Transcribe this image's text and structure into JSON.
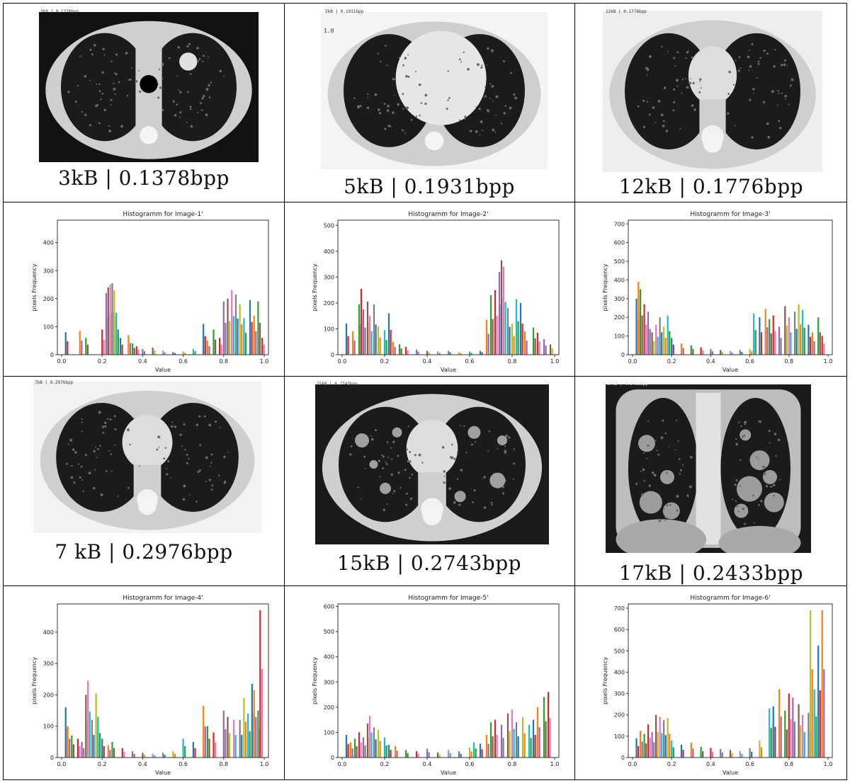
{
  "scans": [
    {
      "id": "scan-1",
      "caption": "3kB | 0.1378bpp",
      "header": "3kB | 0.1378bpp",
      "type": "axial-upper",
      "bg": "#111111"
    },
    {
      "id": "scan-2",
      "caption": "5kB | 0.1931bpp",
      "header": "5kB | 0.1931bpp",
      "type": "axial-heart",
      "bg": "#f4f4f4",
      "extra": "1.0"
    },
    {
      "id": "scan-3",
      "caption": "12kB | 0.1776bpp",
      "header": "12kB | 0.1776bpp",
      "type": "axial-hilum",
      "bg": "#eeeeee"
    },
    {
      "id": "scan-4",
      "caption": "7 kB | 0.2976bpp",
      "header": "7kB | 0.2976bpp",
      "type": "axial-hilum",
      "bg": "#f2f2f2"
    },
    {
      "id": "scan-5",
      "caption": "15kB | 0.2743bpp",
      "header": "15kB | 0.2743bpp",
      "type": "axial-nodules",
      "bg": "#1a1a1a"
    },
    {
      "id": "scan-6",
      "caption": "17kB | 0.2433bpp",
      "header": "17kB | 0.2433bpp",
      "type": "coronal",
      "bg": "#1a1a1a"
    }
  ],
  "chart_data": [
    {
      "type": "bar",
      "title": "Histogramm for Image-1'",
      "xlabel": "Value",
      "ylabel": "pixels Frequency",
      "xlim": [
        0,
        1
      ],
      "ylim": [
        0,
        480
      ],
      "yticks": [
        0,
        100,
        200,
        300,
        400
      ],
      "xticks": [
        0.0,
        0.2,
        0.4,
        0.6,
        0.8,
        1.0
      ],
      "x": [
        0.02,
        0.09,
        0.12,
        0.2,
        0.22,
        0.23,
        0.24,
        0.25,
        0.26,
        0.27,
        0.29,
        0.33,
        0.35,
        0.37,
        0.4,
        0.45,
        0.5,
        0.55,
        0.6,
        0.65,
        0.7,
        0.72,
        0.75,
        0.78,
        0.8,
        0.82,
        0.84,
        0.86,
        0.88,
        0.9,
        0.93,
        0.95,
        0.97,
        0.99
      ],
      "values": [
        80,
        85,
        60,
        90,
        220,
        240,
        250,
        255,
        230,
        150,
        60,
        70,
        40,
        30,
        20,
        25,
        15,
        10,
        12,
        20,
        110,
        50,
        90,
        60,
        190,
        200,
        230,
        215,
        180,
        130,
        195,
        140,
        190,
        60
      ]
    },
    {
      "type": "bar",
      "title": "Histogramm for Image-2'",
      "xlabel": "Value",
      "ylabel": "pixels Frequency",
      "xlim": [
        0,
        1
      ],
      "ylim": [
        0,
        520
      ],
      "yticks": [
        0,
        100,
        200,
        300,
        400,
        500
      ],
      "xticks": [
        0.0,
        0.2,
        0.4,
        0.6,
        0.8,
        1.0
      ],
      "x": [
        0.02,
        0.05,
        0.08,
        0.09,
        0.1,
        0.12,
        0.13,
        0.15,
        0.17,
        0.2,
        0.22,
        0.24,
        0.27,
        0.3,
        0.35,
        0.4,
        0.45,
        0.5,
        0.55,
        0.6,
        0.65,
        0.68,
        0.7,
        0.72,
        0.74,
        0.75,
        0.76,
        0.78,
        0.8,
        0.82,
        0.84,
        0.86,
        0.9,
        0.92,
        0.95,
        0.98
      ],
      "values": [
        120,
        90,
        195,
        255,
        175,
        205,
        150,
        195,
        110,
        95,
        160,
        50,
        40,
        30,
        20,
        15,
        12,
        15,
        10,
        12,
        15,
        135,
        230,
        250,
        320,
        365,
        340,
        180,
        120,
        215,
        200,
        90,
        105,
        85,
        60,
        40
      ]
    },
    {
      "type": "bar",
      "title": "Histogramm for Image-3'",
      "xlabel": "Value",
      "ylabel": "pixels Frequency",
      "xlim": [
        0,
        1
      ],
      "ylim": [
        0,
        720
      ],
      "yticks": [
        0,
        100,
        200,
        300,
        400,
        500,
        600,
        700
      ],
      "xticks": [
        0.0,
        0.2,
        0.4,
        0.6,
        0.8,
        1.0
      ],
      "x": [
        0.02,
        0.03,
        0.04,
        0.06,
        0.08,
        0.1,
        0.12,
        0.14,
        0.16,
        0.18,
        0.2,
        0.25,
        0.3,
        0.35,
        0.4,
        0.45,
        0.5,
        0.55,
        0.6,
        0.62,
        0.65,
        0.68,
        0.7,
        0.72,
        0.75,
        0.78,
        0.8,
        0.83,
        0.85,
        0.87,
        0.9,
        0.92,
        0.95,
        0.97
      ],
      "values": [
        300,
        390,
        350,
        270,
        230,
        120,
        160,
        200,
        150,
        210,
        90,
        60,
        50,
        40,
        30,
        25,
        20,
        25,
        30,
        220,
        200,
        245,
        190,
        210,
        150,
        260,
        200,
        230,
        270,
        240,
        160,
        120,
        200,
        100
      ]
    },
    {
      "type": "bar",
      "title": "Histogramm for Image-4'",
      "xlabel": "Value",
      "ylabel": "pixels Frequency",
      "xlim": [
        0,
        1
      ],
      "ylim": [
        0,
        490
      ],
      "yticks": [
        0,
        100,
        200,
        300,
        400
      ],
      "xticks": [
        0.0,
        0.2,
        0.4,
        0.6,
        0.8,
        1.0
      ],
      "x": [
        0.02,
        0.03,
        0.05,
        0.08,
        0.1,
        0.12,
        0.13,
        0.15,
        0.17,
        0.18,
        0.2,
        0.23,
        0.25,
        0.3,
        0.35,
        0.4,
        0.45,
        0.5,
        0.55,
        0.6,
        0.65,
        0.7,
        0.72,
        0.75,
        0.8,
        0.82,
        0.85,
        0.88,
        0.9,
        0.92,
        0.94,
        0.95,
        0.97,
        0.98
      ],
      "values": [
        160,
        100,
        70,
        60,
        50,
        200,
        245,
        120,
        205,
        130,
        60,
        40,
        50,
        30,
        20,
        15,
        12,
        15,
        20,
        60,
        50,
        165,
        100,
        80,
        150,
        130,
        120,
        120,
        190,
        140,
        235,
        215,
        150,
        470
      ]
    },
    {
      "type": "bar",
      "title": "Histogramm for Image-5'",
      "xlabel": "Value",
      "ylabel": "pixels Frequency",
      "xlim": [
        0,
        1
      ],
      "ylim": [
        0,
        610
      ],
      "yticks": [
        0,
        100,
        200,
        300,
        400,
        500,
        600
      ],
      "xticks": [
        0.0,
        0.2,
        0.4,
        0.6,
        0.8,
        1.0
      ],
      "x": [
        0.02,
        0.04,
        0.06,
        0.08,
        0.1,
        0.12,
        0.13,
        0.15,
        0.17,
        0.2,
        0.22,
        0.25,
        0.3,
        0.35,
        0.4,
        0.45,
        0.5,
        0.55,
        0.6,
        0.62,
        0.65,
        0.68,
        0.7,
        0.72,
        0.75,
        0.78,
        0.8,
        0.82,
        0.85,
        0.88,
        0.9,
        0.92,
        0.95,
        0.97
      ],
      "values": [
        90,
        60,
        75,
        100,
        80,
        135,
        165,
        120,
        110,
        80,
        50,
        45,
        30,
        25,
        35,
        20,
        30,
        25,
        40,
        60,
        55,
        90,
        140,
        150,
        130,
        175,
        190,
        140,
        160,
        130,
        150,
        200,
        240,
        260
      ]
    },
    {
      "type": "bar",
      "title": "Histogramm for Image-6'",
      "xlabel": "Value",
      "ylabel": "pixels Frequency",
      "xlim": [
        0,
        1
      ],
      "ylim": [
        0,
        720
      ],
      "yticks": [
        0,
        100,
        200,
        300,
        400,
        500,
        600,
        700
      ],
      "xticks": [
        0.0,
        0.2,
        0.4,
        0.6,
        0.8,
        1.0
      ],
      "x": [
        0.02,
        0.04,
        0.06,
        0.08,
        0.1,
        0.12,
        0.14,
        0.16,
        0.18,
        0.2,
        0.25,
        0.3,
        0.35,
        0.4,
        0.45,
        0.5,
        0.55,
        0.6,
        0.65,
        0.7,
        0.72,
        0.75,
        0.78,
        0.8,
        0.82,
        0.85,
        0.87,
        0.9,
        0.91,
        0.93,
        0.95,
        0.97
      ],
      "values": [
        90,
        125,
        110,
        155,
        120,
        200,
        190,
        175,
        185,
        80,
        60,
        70,
        50,
        45,
        40,
        35,
        30,
        45,
        80,
        230,
        240,
        320,
        220,
        300,
        280,
        250,
        200,
        210,
        690,
        320,
        525,
        690
      ]
    }
  ],
  "colors": {
    "palette": [
      "#1f77b4",
      "#ff7f0e",
      "#2ca02c",
      "#d62728",
      "#9467bd",
      "#8c564b",
      "#e377c2",
      "#7f7f7f",
      "#bcbd22",
      "#17becf"
    ],
    "scan_tissue": "#cfcfcf",
    "scan_lung": "#1b1b1b",
    "border": "#000000"
  }
}
